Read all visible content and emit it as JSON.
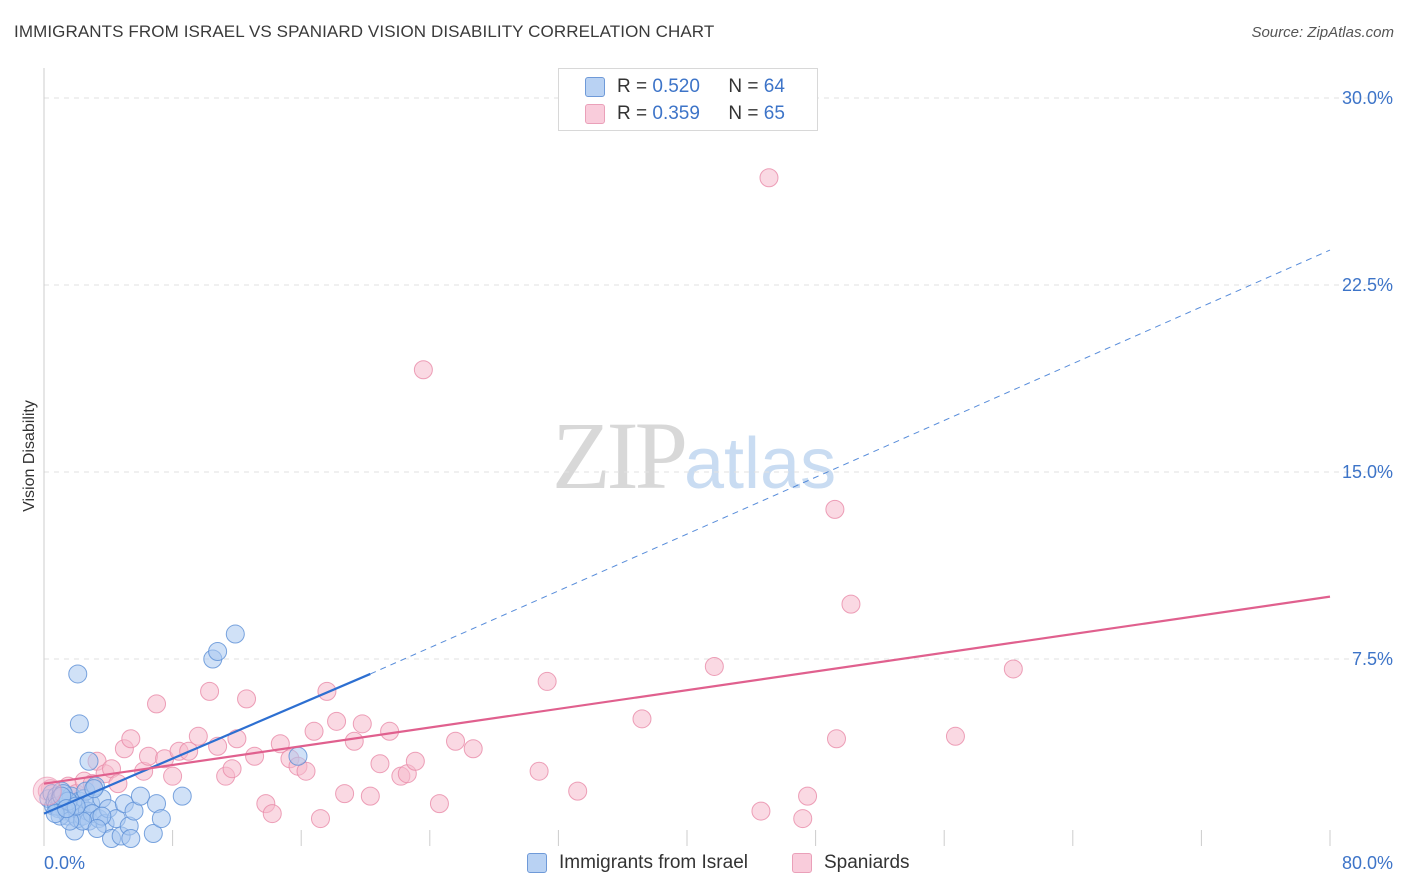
{
  "title": "IMMIGRANTS FROM ISRAEL VS SPANIARD VISION DISABILITY CORRELATION CHART",
  "source": "Source: ZipAtlas.com",
  "watermark": {
    "zip": "ZIP",
    "atlas": "atlas"
  },
  "legend": {
    "series1": {
      "r_label": "R = ",
      "r_value": "0.520",
      "n_label": "N = ",
      "n_value": "64"
    },
    "series2": {
      "r_label": "R = ",
      "r_value": "0.359",
      "n_label": "N = ",
      "n_value": "65"
    }
  },
  "colors": {
    "blue_fill": "#a9c8f0",
    "blue_stroke": "#5b8fd6",
    "blue_line": "#2d6fd1",
    "pink_fill": "#f6b9cc",
    "pink_stroke": "#e889a8",
    "pink_line": "#e0608e",
    "tick_label": "#3d74c8",
    "grid": "#e2e2e2"
  },
  "chart_data": {
    "type": "scatter",
    "title": "IMMIGRANTS FROM ISRAEL VS SPANIARD VISION DISABILITY CORRELATION CHART",
    "xlabel": "",
    "ylabel": "Vision Disability",
    "xlim": [
      0,
      80
    ],
    "ylim": [
      0,
      30.8
    ],
    "x_tick_labels": [
      "0.0%",
      "80.0%"
    ],
    "y_ticks": [
      7.5,
      15.0,
      22.5,
      30.0
    ],
    "y_tick_labels": [
      "7.5%",
      "15.0%",
      "22.5%",
      "30.0%"
    ],
    "series": [
      {
        "name": "Immigrants from Israel",
        "color": "blue",
        "trend": {
          "x": [
            0,
            20.3
          ],
          "y": [
            1.3,
            6.9
          ],
          "dashed_x": [
            20.3,
            80
          ],
          "dashed_y": [
            6.9,
            23.9
          ]
        },
        "points": [
          [
            0.3,
            1.9
          ],
          [
            0.5,
            2.1
          ],
          [
            0.6,
            1.6
          ],
          [
            0.7,
            1.8
          ],
          [
            0.8,
            2.0
          ],
          [
            0.9,
            1.5
          ],
          [
            1.0,
            1.9
          ],
          [
            1.1,
            2.2
          ],
          [
            1.2,
            1.7
          ],
          [
            1.3,
            1.4
          ],
          [
            1.4,
            1.8
          ],
          [
            1.5,
            1.2
          ],
          [
            1.6,
            1.6
          ],
          [
            1.7,
            2.0
          ],
          [
            1.8,
            1.3
          ],
          [
            1.9,
            0.6
          ],
          [
            2.0,
            1.5
          ],
          [
            2.1,
            1.1
          ],
          [
            2.2,
            1.8
          ],
          [
            2.3,
            1.6
          ],
          [
            2.4,
            1.2
          ],
          [
            2.5,
            1.9
          ],
          [
            2.6,
            2.2
          ],
          [
            2.7,
            1.4
          ],
          [
            2.8,
            1.0
          ],
          [
            2.9,
            1.7
          ],
          [
            3.0,
            1.3
          ],
          [
            3.2,
            2.4
          ],
          [
            3.4,
            1.1
          ],
          [
            3.6,
            1.9
          ],
          [
            3.8,
            0.9
          ],
          [
            4.0,
            1.5
          ],
          [
            4.2,
            0.3
          ],
          [
            4.5,
            1.1
          ],
          [
            4.8,
            0.4
          ],
          [
            5.0,
            1.7
          ],
          [
            5.3,
            0.8
          ],
          [
            5.6,
            1.4
          ],
          [
            6.0,
            2.0
          ],
          [
            2.1,
            6.9
          ],
          [
            2.2,
            4.9
          ],
          [
            2.8,
            3.4
          ],
          [
            3.1,
            2.3
          ],
          [
            0.8,
            1.6
          ],
          [
            1.0,
            1.2
          ],
          [
            1.2,
            2.1
          ],
          [
            1.5,
            1.8
          ],
          [
            2.4,
            1.0
          ],
          [
            3.6,
            1.2
          ],
          [
            5.4,
            0.3
          ],
          [
            6.8,
            0.5
          ],
          [
            7.0,
            1.7
          ],
          [
            7.3,
            1.1
          ],
          [
            8.6,
            2.0
          ],
          [
            10.5,
            7.5
          ],
          [
            10.8,
            7.8
          ],
          [
            11.9,
            8.5
          ],
          [
            15.8,
            3.6
          ],
          [
            1.1,
            2.0
          ],
          [
            1.6,
            1.0
          ],
          [
            2.0,
            1.6
          ],
          [
            0.7,
            1.3
          ],
          [
            1.4,
            1.5
          ],
          [
            3.3,
            0.7
          ]
        ]
      },
      {
        "name": "Spaniards",
        "color": "pink",
        "trend": {
          "x": [
            0,
            80
          ],
          "y": [
            2.5,
            10.0
          ]
        },
        "points": [
          [
            0.4,
            2.3
          ],
          [
            1.0,
            2.0
          ],
          [
            1.5,
            2.4
          ],
          [
            2.0,
            2.1
          ],
          [
            2.5,
            2.6
          ],
          [
            3.0,
            2.5
          ],
          [
            3.3,
            3.4
          ],
          [
            3.8,
            2.9
          ],
          [
            4.2,
            3.1
          ],
          [
            4.6,
            2.5
          ],
          [
            5.0,
            3.9
          ],
          [
            5.4,
            4.3
          ],
          [
            6.2,
            3.0
          ],
          [
            6.5,
            3.6
          ],
          [
            7.0,
            5.7
          ],
          [
            7.5,
            3.5
          ],
          [
            8.0,
            2.8
          ],
          [
            8.4,
            3.8
          ],
          [
            9.0,
            3.8
          ],
          [
            9.6,
            4.4
          ],
          [
            10.3,
            6.2
          ],
          [
            10.8,
            4.0
          ],
          [
            11.3,
            2.8
          ],
          [
            11.7,
            3.1
          ],
          [
            12.0,
            4.3
          ],
          [
            12.6,
            5.9
          ],
          [
            13.1,
            3.6
          ],
          [
            13.8,
            1.7
          ],
          [
            14.2,
            1.3
          ],
          [
            14.7,
            4.1
          ],
          [
            15.3,
            3.5
          ],
          [
            15.8,
            3.2
          ],
          [
            16.3,
            3.0
          ],
          [
            16.8,
            4.6
          ],
          [
            17.2,
            1.1
          ],
          [
            17.6,
            6.2
          ],
          [
            18.2,
            5.0
          ],
          [
            18.7,
            2.1
          ],
          [
            19.3,
            4.2
          ],
          [
            19.8,
            4.9
          ],
          [
            20.3,
            2.0
          ],
          [
            20.9,
            3.3
          ],
          [
            21.5,
            4.6
          ],
          [
            22.2,
            2.8
          ],
          [
            22.6,
            2.9
          ],
          [
            23.1,
            3.4
          ],
          [
            23.6,
            19.1
          ],
          [
            24.6,
            1.7
          ],
          [
            25.6,
            4.2
          ],
          [
            26.7,
            3.9
          ],
          [
            30.8,
            3.0
          ],
          [
            31.3,
            6.6
          ],
          [
            33.2,
            2.2
          ],
          [
            37.2,
            5.1
          ],
          [
            41.7,
            7.2
          ],
          [
            44.6,
            1.4
          ],
          [
            45.1,
            26.8
          ],
          [
            47.2,
            1.1
          ],
          [
            47.5,
            2.0
          ],
          [
            49.2,
            13.5
          ],
          [
            49.3,
            4.3
          ],
          [
            50.2,
            9.7
          ],
          [
            56.7,
            4.4
          ],
          [
            60.3,
            7.1
          ],
          [
            0.2,
            2.2
          ]
        ]
      }
    ],
    "bottom_legend": [
      "Immigrants from Israel",
      "Spaniards"
    ]
  }
}
